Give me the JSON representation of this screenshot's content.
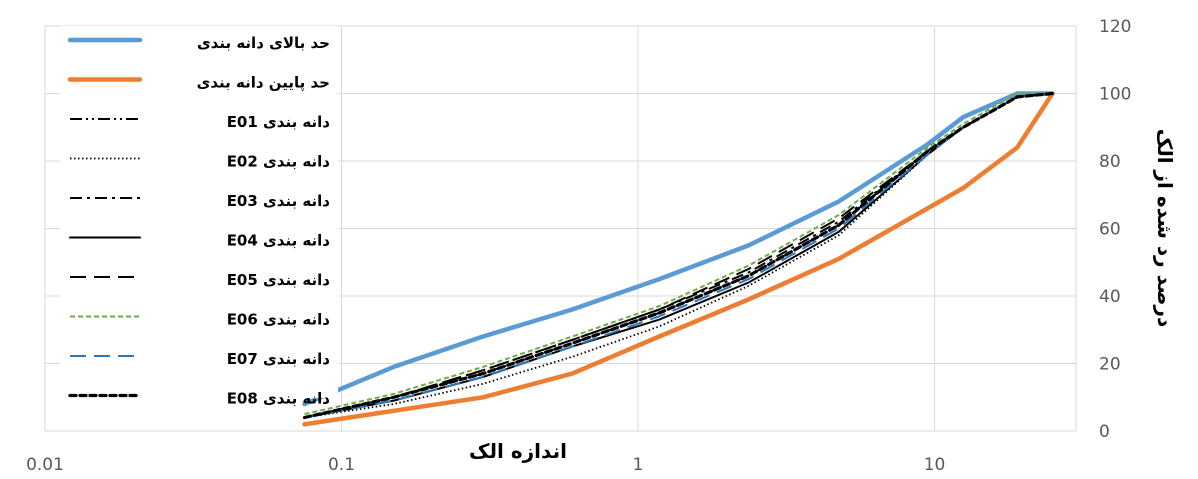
{
  "chart_data": {
    "type": "line",
    "x_scale": "log",
    "xlabel": "اندازه الک",
    "ylabel": "درصد رد شده از الک",
    "xlim": [
      0.01,
      30
    ],
    "ylim": [
      0,
      120
    ],
    "x_ticks": [
      "0.01",
      "0.1",
      "1",
      "10"
    ],
    "y_ticks": [
      "0",
      "20",
      "40",
      "60",
      "80",
      "100",
      "120"
    ],
    "grid": true,
    "legend_position": "top-left",
    "series": [
      {
        "name": "حد بالای دانه بندی",
        "color": "#5b9bd5",
        "dash": "solid",
        "x": [
          0.075,
          0.15,
          0.3,
          0.6,
          1.18,
          2.36,
          4.75,
          9.5,
          12.5,
          19,
          25
        ],
        "y": [
          8,
          19,
          28,
          36,
          45,
          55,
          68,
          85,
          93,
          100,
          100
        ]
      },
      {
        "name": "حد پایین دانه بندی",
        "color": "#ed7d31",
        "dash": "solid",
        "x": [
          0.075,
          0.15,
          0.3,
          0.6,
          1.18,
          2.36,
          4.75,
          9.5,
          12.5,
          19,
          25
        ],
        "y": [
          2,
          6,
          10,
          17,
          28,
          39,
          51,
          66,
          72,
          84,
          100
        ]
      },
      {
        "name": "دانه بندی E01",
        "color": "#000000",
        "dash": "dashdotdot",
        "x": [
          0.075,
          0.15,
          0.3,
          0.6,
          1.18,
          2.36,
          4.75,
          9.5,
          12.5,
          19,
          25
        ],
        "y": [
          4,
          10,
          17,
          26,
          35,
          46,
          61,
          83,
          90,
          99,
          100
        ]
      },
      {
        "name": "دانه بندی E02",
        "color": "#000000",
        "dash": "dotted",
        "x": [
          0.075,
          0.15,
          0.3,
          0.6,
          1.18,
          2.36,
          4.75,
          9.5,
          12.5,
          19,
          25
        ],
        "y": [
          4,
          8,
          14,
          22,
          31,
          43,
          58,
          82,
          90,
          99,
          100
        ]
      },
      {
        "name": "دانه بندی E03",
        "color": "#000000",
        "dash": "dashdot",
        "x": [
          0.075,
          0.15,
          0.3,
          0.6,
          1.18,
          2.36,
          4.75,
          9.5,
          12.5,
          19,
          25
        ],
        "y": [
          4,
          10,
          18,
          27,
          36,
          47,
          62,
          83,
          90,
          99,
          100
        ]
      },
      {
        "name": "دانه بندی E04",
        "color": "#000000",
        "dash": "solid",
        "x": [
          0.075,
          0.15,
          0.3,
          0.6,
          1.18,
          2.36,
          4.75,
          9.5,
          12.5,
          19,
          25
        ],
        "y": [
          4,
          9,
          16,
          25,
          33,
          44,
          59,
          82,
          90,
          99,
          100
        ]
      },
      {
        "name": "دانه بندی E05",
        "color": "#000000",
        "dash": "longdash",
        "x": [
          0.075,
          0.15,
          0.3,
          0.6,
          1.18,
          2.36,
          4.75,
          9.5,
          12.5,
          19,
          25
        ],
        "y": [
          4,
          10,
          18,
          27,
          36,
          48,
          63,
          83,
          90,
          99,
          100
        ]
      },
      {
        "name": "دانه بندی E06",
        "color": "#70ad47",
        "dash": "shortdash",
        "x": [
          0.075,
          0.15,
          0.3,
          0.6,
          1.18,
          2.36,
          4.75,
          9.5,
          12.5,
          19,
          25
        ],
        "y": [
          5,
          11,
          19,
          28,
          37,
          49,
          64,
          84,
          91,
          100,
          100
        ]
      },
      {
        "name": "دانه بندی E07",
        "color": "#2e75b6",
        "dash": "longdash",
        "x": [
          0.075,
          0.15,
          0.3,
          0.6,
          1.18,
          2.36,
          4.75,
          9.5,
          12.5,
          19,
          25
        ],
        "y": [
          4,
          9,
          16,
          25,
          34,
          45,
          60,
          82,
          90,
          99,
          100
        ]
      },
      {
        "name": "دانه بندی E08",
        "color": "#000000",
        "dash": "roundeddash",
        "x": [
          0.075,
          0.15,
          0.3,
          0.6,
          1.18,
          2.36,
          4.75,
          9.5,
          12.5,
          19,
          25
        ],
        "y": [
          4,
          10,
          17,
          26,
          35,
          46,
          61,
          83,
          90,
          99,
          100
        ]
      }
    ]
  }
}
